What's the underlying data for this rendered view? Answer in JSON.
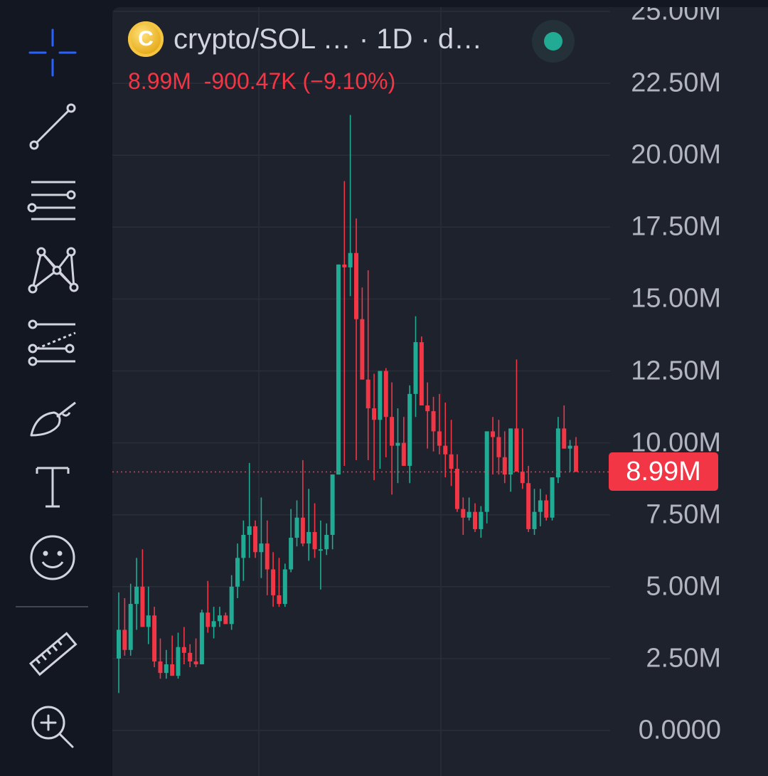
{
  "toolbar": {
    "tools": [
      {
        "icon": "crosshair-icon",
        "active": true
      },
      {
        "icon": "trend-line-icon"
      },
      {
        "icon": "parallel-lines-icon"
      },
      {
        "icon": "pattern-icon"
      },
      {
        "icon": "fib-retracement-icon"
      },
      {
        "icon": "brush-icon"
      },
      {
        "icon": "text-icon"
      },
      {
        "icon": "emoji-icon"
      },
      {
        "icon": "ruler-icon"
      },
      {
        "icon": "zoom-in-icon"
      }
    ]
  },
  "header": {
    "symbol": "crypto/SOL …  · 1D · d…",
    "last_value": "8.99M",
    "change": "-900.47K",
    "change_pct": "(−9.10%)"
  },
  "colors": {
    "background": "#1e222d",
    "up": "#22ab94",
    "down": "#f23645",
    "grid": "#2a2e39",
    "active_tool": "#2962ff"
  },
  "price_label": "8.99M",
  "chart_data": {
    "type": "candlestick",
    "interval": "1D",
    "ylim": [
      0,
      25000000
    ],
    "y_ticks": [
      "25.00M",
      "22.50M",
      "20.00M",
      "17.50M",
      "15.00M",
      "12.50M",
      "10.00M",
      "7.50M",
      "5.00M",
      "2.50M",
      "0.0000"
    ],
    "y_tick_values": [
      25000000,
      22500000,
      20000000,
      17500000,
      15000000,
      12500000,
      10000000,
      7500000,
      5000000,
      2500000,
      0
    ],
    "last_price": 8990000,
    "grid": true,
    "candles": [
      [
        2.5,
        4.8,
        1.3,
        3.5
      ],
      [
        3.5,
        4.6,
        2.6,
        2.8
      ],
      [
        2.8,
        5.1,
        2.6,
        4.4
      ],
      [
        4.4,
        6.0,
        3.5,
        5.0
      ],
      [
        5.0,
        6.3,
        3.8,
        3.6
      ],
      [
        3.6,
        5.0,
        3.0,
        4.0
      ],
      [
        4.0,
        4.3,
        2.2,
        2.4
      ],
      [
        2.4,
        3.2,
        1.8,
        2.0
      ],
      [
        2.0,
        2.8,
        1.8,
        2.3
      ],
      [
        2.3,
        3.3,
        1.9,
        1.9
      ],
      [
        1.9,
        3.4,
        1.8,
        2.9
      ],
      [
        2.9,
        3.6,
        2.3,
        2.7
      ],
      [
        2.7,
        3.0,
        2.2,
        2.4
      ],
      [
        2.4,
        3.2,
        2.2,
        2.3
      ],
      [
        2.3,
        4.2,
        2.3,
        4.1
      ],
      [
        4.1,
        5.2,
        3.4,
        3.6
      ],
      [
        3.6,
        4.3,
        3.2,
        3.8
      ],
      [
        3.8,
        4.3,
        3.6,
        4.0
      ],
      [
        4.0,
        4.1,
        3.7,
        3.7
      ],
      [
        3.7,
        5.4,
        3.5,
        5.0
      ],
      [
        5.0,
        6.5,
        4.6,
        6.0
      ],
      [
        6.0,
        7.3,
        5.2,
        6.8
      ],
      [
        6.8,
        9.3,
        6.0,
        7.1
      ],
      [
        7.1,
        7.3,
        6.0,
        6.2
      ],
      [
        6.2,
        8.1,
        5.3,
        6.5
      ],
      [
        6.5,
        7.3,
        4.7,
        5.6
      ],
      [
        5.6,
        6.2,
        4.3,
        4.7
      ],
      [
        4.7,
        6.0,
        4.3,
        4.4
      ],
      [
        4.4,
        5.8,
        4.3,
        5.6
      ],
      [
        5.6,
        7.7,
        5.5,
        6.7
      ],
      [
        6.7,
        8.0,
        6.4,
        7.4
      ],
      [
        7.4,
        9.4,
        6.4,
        6.5
      ],
      [
        6.5,
        8.4,
        5.9,
        6.9
      ],
      [
        6.9,
        7.9,
        6.0,
        6.3
      ],
      [
        6.3,
        7.3,
        4.9,
        6.3
      ],
      [
        6.3,
        7.2,
        6.1,
        6.8
      ],
      [
        6.8,
        8.8,
        6.3,
        8.9
      ],
      [
        8.9,
        14.3,
        8.9,
        16.2
      ],
      [
        16.2,
        19.1,
        9.2,
        16.1
      ],
      [
        16.1,
        21.4,
        15.1,
        16.6
      ],
      [
        16.6,
        17.8,
        9.4,
        14.3
      ],
      [
        14.3,
        15.4,
        12.9,
        12.2
      ],
      [
        12.2,
        16.0,
        9.4,
        11.2
      ],
      [
        11.2,
        12.4,
        8.7,
        10.8
      ],
      [
        10.8,
        12.2,
        9.1,
        12.5
      ],
      [
        12.5,
        12.6,
        9.5,
        10.9
      ],
      [
        10.9,
        12.1,
        8.2,
        9.9
      ],
      [
        9.9,
        11.2,
        8.6,
        10.0
      ],
      [
        10.0,
        10.9,
        9.6,
        9.2
      ],
      [
        9.2,
        12.0,
        8.6,
        11.7
      ],
      [
        11.7,
        14.4,
        10.9,
        13.5
      ],
      [
        13.5,
        13.7,
        11.6,
        11.3
      ],
      [
        11.3,
        12.1,
        9.8,
        11.1
      ],
      [
        11.1,
        11.6,
        9.7,
        10.4
      ],
      [
        10.4,
        11.7,
        9.6,
        9.9
      ],
      [
        9.9,
        11.4,
        8.8,
        9.6
      ],
      [
        9.6,
        10.8,
        8.5,
        9.1
      ],
      [
        9.1,
        9.6,
        7.6,
        7.7
      ],
      [
        7.7,
        8.1,
        6.8,
        7.4
      ],
      [
        7.4,
        8.1,
        7.3,
        7.6
      ],
      [
        7.6,
        7.9,
        6.9,
        7.0
      ],
      [
        7.0,
        7.8,
        6.7,
        7.6
      ],
      [
        7.6,
        10.3,
        7.2,
        10.4
      ],
      [
        10.4,
        10.9,
        8.9,
        10.2
      ],
      [
        10.2,
        10.8,
        8.9,
        9.5
      ],
      [
        9.5,
        10.4,
        8.6,
        8.9
      ],
      [
        8.9,
        10.3,
        8.3,
        10.5
      ],
      [
        10.5,
        12.9,
        9.9,
        9.0
      ],
      [
        9.0,
        10.5,
        8.4,
        8.6
      ],
      [
        8.6,
        9.2,
        6.9,
        7.0
      ],
      [
        7.0,
        8.4,
        6.8,
        7.6
      ],
      [
        7.6,
        8.4,
        7.1,
        8.0
      ],
      [
        8.0,
        8.2,
        7.3,
        7.4
      ],
      [
        7.4,
        8.5,
        7.3,
        8.8
      ],
      [
        8.8,
        10.9,
        8.6,
        10.5
      ],
      [
        10.5,
        11.3,
        9.8,
        9.8
      ],
      [
        9.8,
        10.1,
        9.0,
        9.9
      ],
      [
        9.9,
        10.2,
        9.2,
        8.99
      ]
    ]
  }
}
